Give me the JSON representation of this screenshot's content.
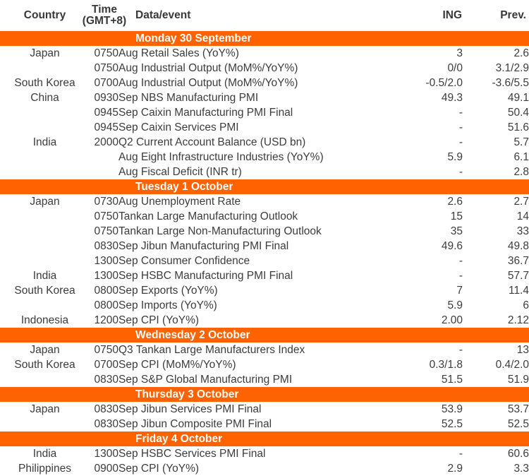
{
  "table": {
    "headers": {
      "country": "Country",
      "time_line1": "Time",
      "time_line2": "(GMT+8)",
      "event": "Data/event",
      "ing": "ING",
      "prev": "Prev."
    },
    "colors": {
      "accent_orange": "#FF6200",
      "body_text": "#3c3c3c",
      "section_text": "#ffffff",
      "background": "#ffffff"
    },
    "sections": [
      {
        "title": "Monday 30 September",
        "rows": [
          {
            "country": "Japan",
            "time": "0750",
            "event": "Aug Retail Sales (YoY%)",
            "ing": "3",
            "prev": "2.6"
          },
          {
            "country": "",
            "time": "0750",
            "event": "Aug Industrial Output (MoM%/YoY%)",
            "ing": "0/0",
            "prev": "3.1/2.9"
          },
          {
            "country": "South Korea",
            "time": "0700",
            "event": "Aug Industrial Output (MoM%/YoY%)",
            "ing": "-0.5/2.0",
            "prev": "-3.6/5.5"
          },
          {
            "country": "China",
            "time": "0930",
            "event": "Sep NBS Manufacturing PMI",
            "ing": "49.3",
            "prev": "49.1"
          },
          {
            "country": "",
            "time": "0945",
            "event": "Sep Caixin Manufacturing PMI Final",
            "ing": "-",
            "prev": "50.4"
          },
          {
            "country": "",
            "time": "0945",
            "event": "Sep Caixin Services PMI",
            "ing": "-",
            "prev": "51.6"
          },
          {
            "country": "India",
            "time": "2000",
            "event": "Q2 Current Account Balance (USD bn)",
            "ing": "-",
            "prev": "5.7"
          },
          {
            "country": "",
            "time": "",
            "event": "Aug Eight Infrastructure Industries (YoY%)",
            "ing": "5.9",
            "prev": "6.1"
          },
          {
            "country": "",
            "time": "",
            "event": "Aug Fiscal Deficit (INR tr)",
            "ing": "-",
            "prev": "2.8"
          }
        ]
      },
      {
        "title": "Tuesday 1 October",
        "rows": [
          {
            "country": "Japan",
            "time": "0730",
            "event": "Aug Unemployment Rate",
            "ing": "2.6",
            "prev": "2.7"
          },
          {
            "country": "",
            "time": "0750",
            "event": "Tankan Large Manufacturing Outlook",
            "ing": "15",
            "prev": "14"
          },
          {
            "country": "",
            "time": "0750",
            "event": "Tankan Large Non-Manufacturing Outlook",
            "ing": "35",
            "prev": "33"
          },
          {
            "country": "",
            "time": "0830",
            "event": "Sep Jibun Manufacturing PMI Final",
            "ing": "49.6",
            "prev": "49.8"
          },
          {
            "country": "",
            "time": "1300",
            "event": "Sep Consumer Confidence",
            "ing": "-",
            "prev": "36.7"
          },
          {
            "country": "India",
            "time": "1300",
            "event": "Sep HSBC Manufacturing PMI Final",
            "ing": "-",
            "prev": "57.7"
          },
          {
            "country": "South Korea",
            "time": "0800",
            "event": "Sep Exports (YoY%)",
            "ing": "7",
            "prev": "11.4"
          },
          {
            "country": "",
            "time": "0800",
            "event": "Sep Imports (YoY%)",
            "ing": "5.9",
            "prev": "6"
          },
          {
            "country": "Indonesia",
            "time": "1200",
            "event": "Sep CPI (YoY%)",
            "ing": "2.00",
            "prev": "2.12"
          }
        ]
      },
      {
        "title": "Wednesday 2 October",
        "rows": [
          {
            "country": "Japan",
            "time": "0750",
            "event": "Q3 Tankan Large Manufacturers Index",
            "ing": "-",
            "prev": "13"
          },
          {
            "country": "South Korea",
            "time": "0700",
            "event": "Sep CPI (MoM%/YoY%)",
            "ing": "0.3/1.8",
            "prev": "0.4/2.0"
          },
          {
            "country": "",
            "time": "0830",
            "event": "Sep S&P Global Manufacturing PMI",
            "ing": "51.5",
            "prev": "51.9"
          }
        ]
      },
      {
        "title": "Thursday 3 October",
        "rows": [
          {
            "country": "Japan",
            "time": "0830",
            "event": "Sep Jibun Services PMI Final",
            "ing": "53.9",
            "prev": "53.7"
          },
          {
            "country": "",
            "time": "0830",
            "event": "Sep Jibun Composite PMI Final",
            "ing": "52.5",
            "prev": "52.5"
          }
        ]
      },
      {
        "title": "Friday 4 October",
        "rows": [
          {
            "country": "India",
            "time": "1300",
            "event": "Sep HSBC Services PMI Final",
            "ing": "-",
            "prev": "60.6"
          },
          {
            "country": "Philippines",
            "time": "0900",
            "event": "Sep CPI (YoY%)",
            "ing": "2.9",
            "prev": "3.3"
          }
        ]
      }
    ]
  }
}
